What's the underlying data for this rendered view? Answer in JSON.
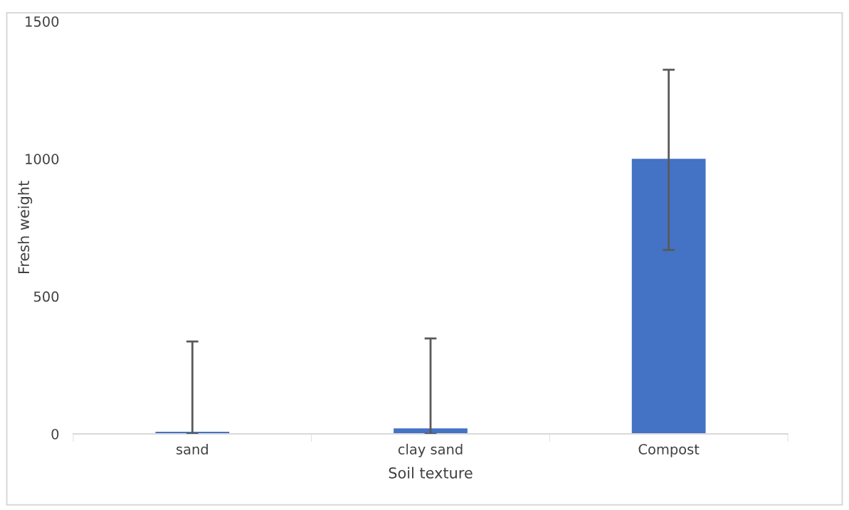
{
  "chart_data": {
    "type": "bar",
    "xlabel": "Soil texture",
    "ylabel": "Fresh weight",
    "categories": [
      "sand",
      "clay sand",
      "Compost"
    ],
    "values": [
      8,
      20,
      1000
    ],
    "color": "#4472c4",
    "errors": [
      [
        0,
        336
      ],
      [
        0,
        347
      ],
      [
        669,
        1324
      ]
    ],
    "ylim": [
      0,
      1500
    ],
    "yticks": [
      0,
      500,
      1000,
      1500
    ],
    "grid": false
  }
}
